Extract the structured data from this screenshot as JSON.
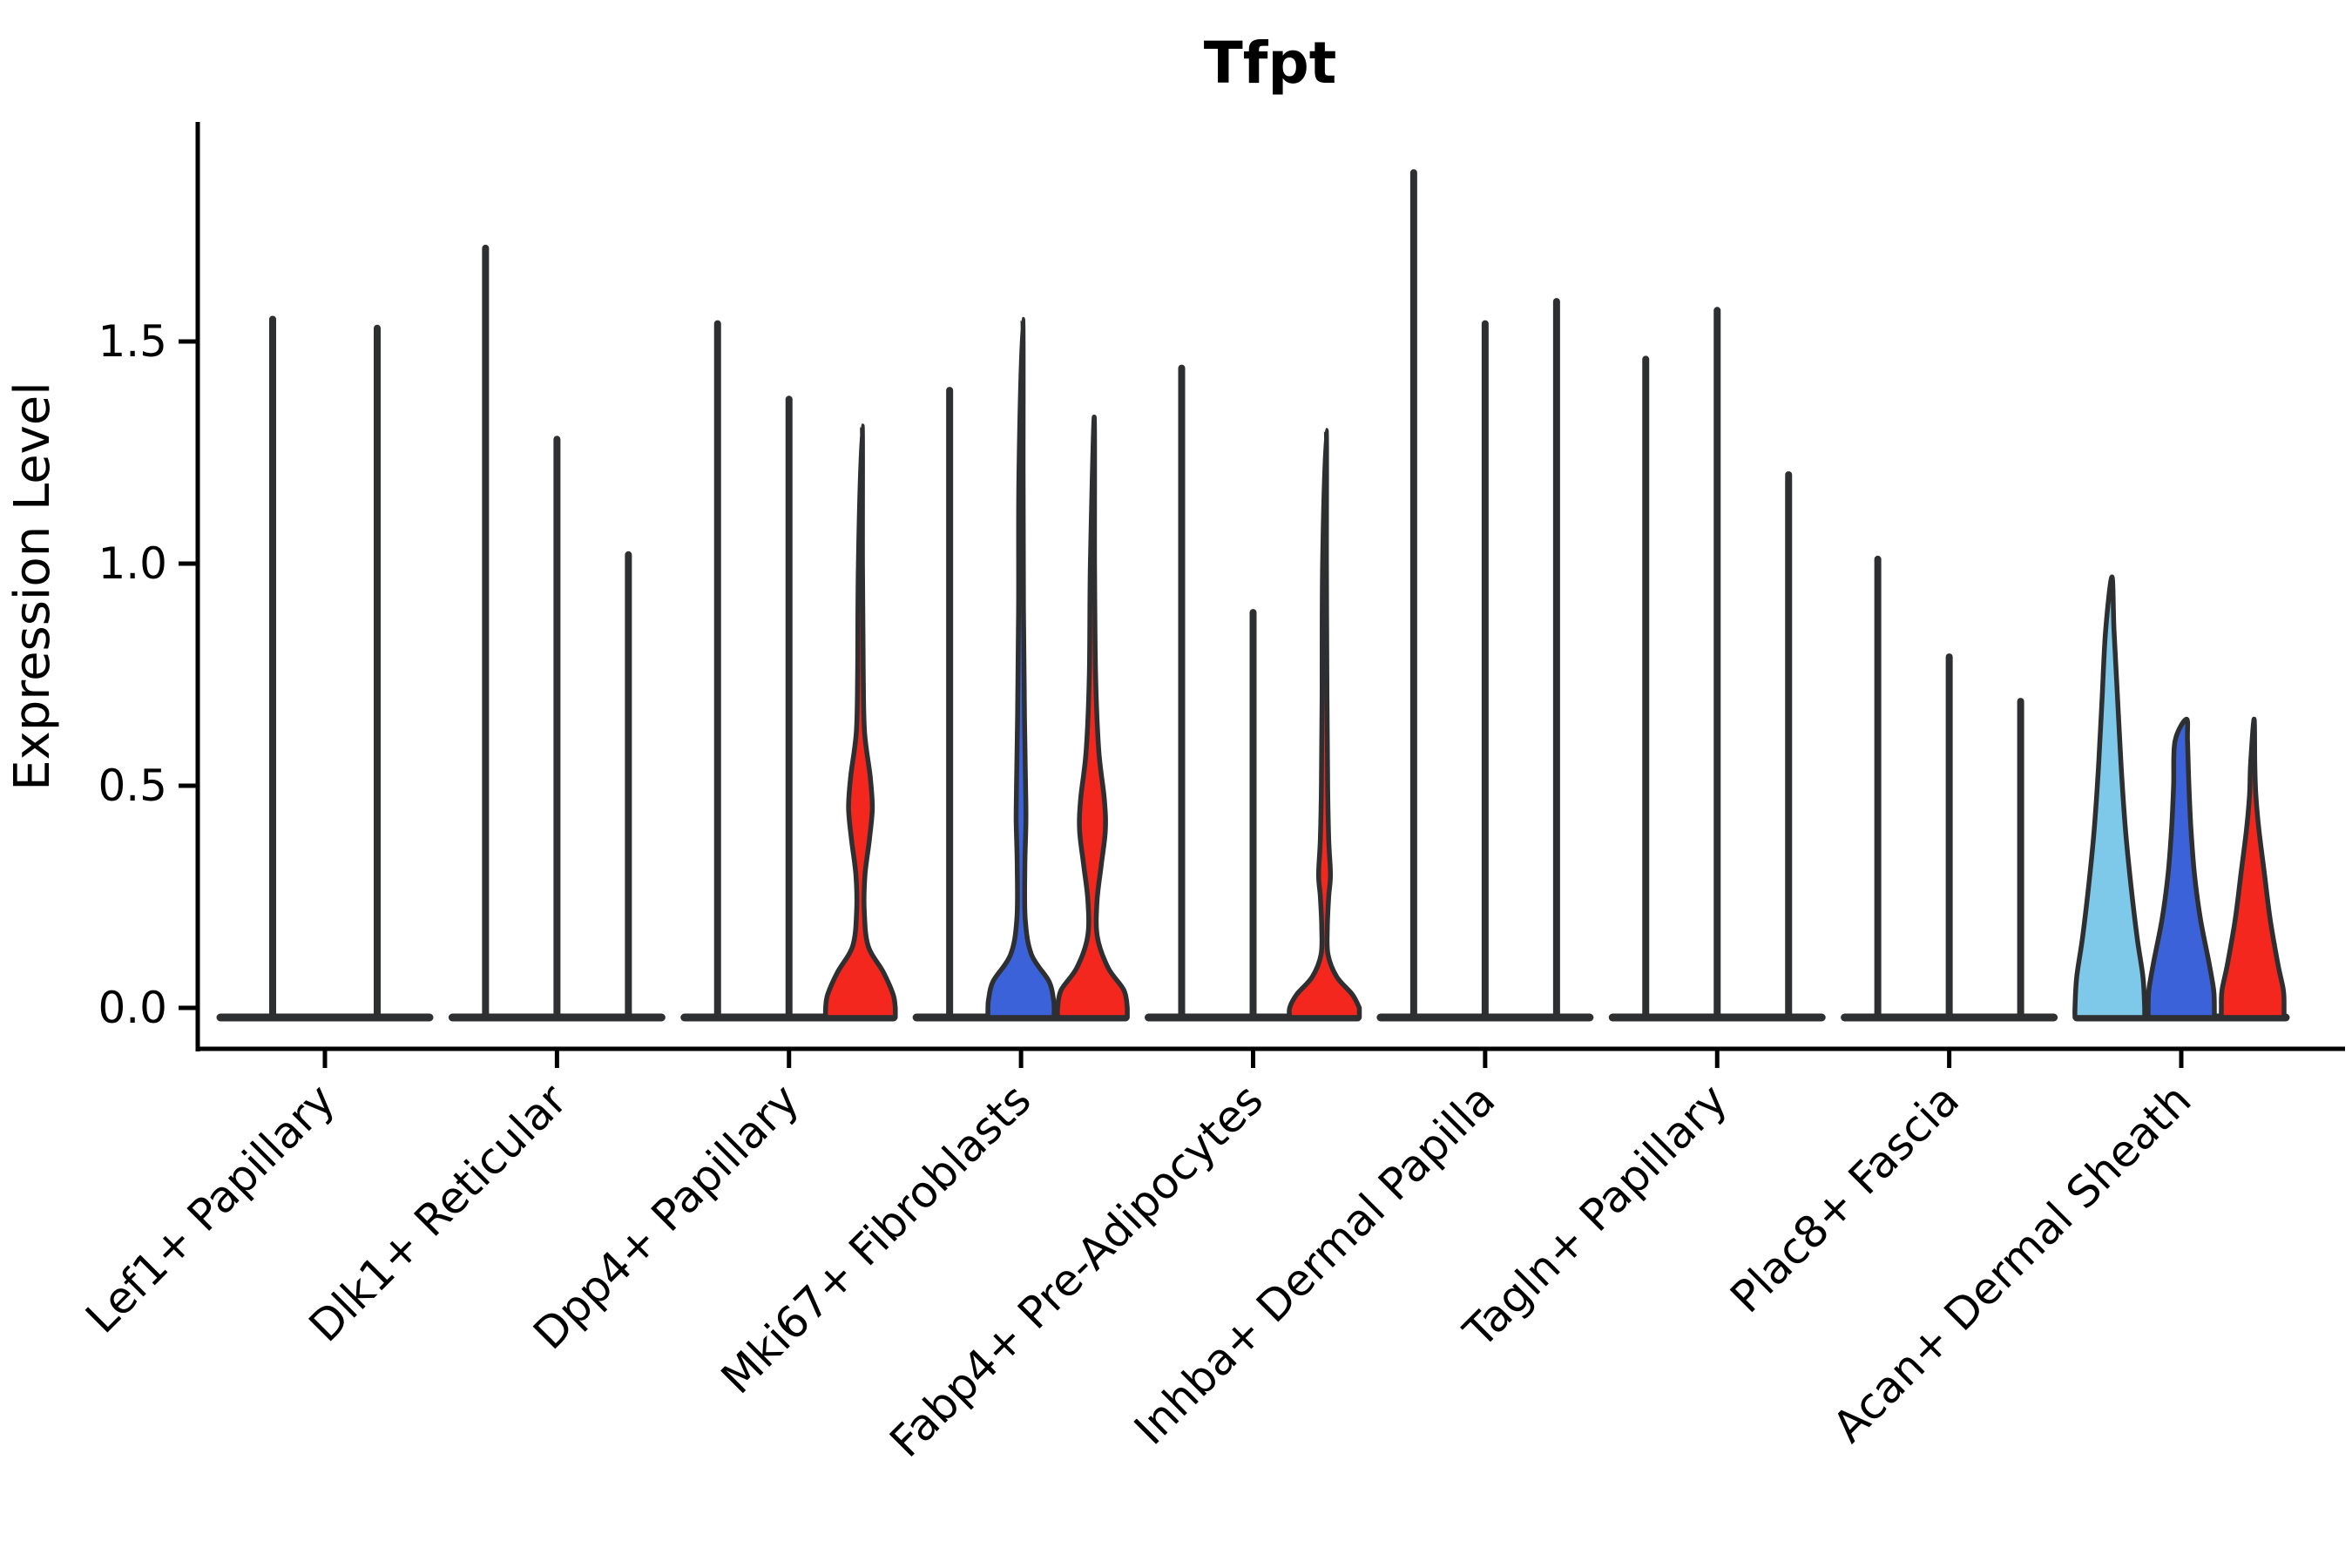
{
  "title": "Tfpt",
  "colors": {
    "background": "#ffffff",
    "axis": "#000000",
    "violin_edge": "#2e2f31",
    "baseline": "#2e2f31",
    "red": "#f3271e",
    "blue": "#3b62d9",
    "skyblue": "#7ec8e9",
    "text": "#000000"
  },
  "chart_data": {
    "type": "violin",
    "title": "Tfpt",
    "xlabel": "",
    "ylabel": "Expression Level",
    "ylim": [
      -0.09,
      1.99
    ],
    "yticks": [
      0,
      0.5,
      1.0,
      1.5
    ],
    "ytick_labels": [
      "0.0",
      "0.5",
      "1.0",
      "1.5"
    ],
    "grid": false,
    "legend": "none",
    "categories": [
      "Lef1+ Papillary",
      "Dlk1+ Reticular",
      "Dpp4+ Papillary",
      "Mki67+ Fibroblasts",
      "Fabp4+ Pre-Adipocytes",
      "Inhba+ Dermal Papilla",
      "Tagln+ Papillary",
      "Plac8+ Fascia",
      "Acan+ Dermal Sheath"
    ],
    "series_per_group": 3,
    "groups": [
      {
        "category": "Lef1+ Papillary",
        "dodge_count": 2,
        "violins": [
          {
            "position": 1,
            "shape": "collapsed-spike",
            "max": 1.55,
            "fill": null
          },
          {
            "position": 2,
            "shape": "collapsed-spike",
            "max": 1.53,
            "fill": null
          }
        ]
      },
      {
        "category": "Dlk1+ Reticular",
        "dodge_count": 3,
        "violins": [
          {
            "position": 1,
            "shape": "collapsed-spike",
            "max": 1.71,
            "fill": null
          },
          {
            "position": 2,
            "shape": "collapsed-spike",
            "max": 1.28,
            "fill": null
          },
          {
            "position": 3,
            "shape": "collapsed-spike",
            "max": 1.02,
            "fill": null
          }
        ]
      },
      {
        "category": "Dpp4+ Papillary",
        "dodge_count": 3,
        "violins": [
          {
            "position": 1,
            "shape": "collapsed-spike",
            "max": 1.54,
            "fill": null
          },
          {
            "position": 2,
            "shape": "collapsed-spike",
            "max": 1.37,
            "fill": null
          },
          {
            "position": 3,
            "shape": "violin",
            "max": 1.31,
            "fill": "red",
            "profile": [
              [
                1.31,
                0.05
              ],
              [
                1.0,
                0.06
              ],
              [
                0.75,
                0.08
              ],
              [
                0.62,
                0.12
              ],
              [
                0.52,
                0.28
              ],
              [
                0.45,
                0.34
              ],
              [
                0.38,
                0.26
              ],
              [
                0.3,
                0.13
              ],
              [
                0.22,
                0.11
              ],
              [
                0.14,
                0.22
              ],
              [
                0.08,
                0.66
              ],
              [
                0.03,
                0.94
              ],
              [
                0,
                1.0
              ]
            ]
          }
        ]
      },
      {
        "category": "Mki67+ Fibroblasts",
        "dodge_count": 3,
        "violins": [
          {
            "position": 1,
            "shape": "collapsed-spike",
            "max": 1.39,
            "fill": null
          },
          {
            "position": 2,
            "shape": "violin",
            "max": 1.55,
            "fill": "blue",
            "profile": [
              [
                1.55,
                0.05
              ],
              [
                1.2,
                0.06
              ],
              [
                0.9,
                0.07
              ],
              [
                0.65,
                0.1
              ],
              [
                0.5,
                0.13
              ],
              [
                0.42,
                0.14
              ],
              [
                0.32,
                0.11
              ],
              [
                0.2,
                0.12
              ],
              [
                0.12,
                0.3
              ],
              [
                0.06,
                0.8
              ],
              [
                0.02,
                0.93
              ],
              [
                0,
                0.95
              ]
            ]
          },
          {
            "position": 3,
            "shape": "violin",
            "max": 1.33,
            "fill": "red",
            "profile": [
              [
                1.33,
                0.05
              ],
              [
                1.0,
                0.06
              ],
              [
                0.75,
                0.09
              ],
              [
                0.58,
                0.18
              ],
              [
                0.47,
                0.34
              ],
              [
                0.4,
                0.37
              ],
              [
                0.32,
                0.25
              ],
              [
                0.24,
                0.13
              ],
              [
                0.16,
                0.14
              ],
              [
                0.09,
                0.45
              ],
              [
                0.04,
                0.9
              ],
              [
                0,
                1.0
              ]
            ]
          }
        ]
      },
      {
        "category": "Fabp4+ Pre-Adipocytes",
        "dodge_count": 3,
        "violins": [
          {
            "position": 1,
            "shape": "collapsed-spike",
            "max": 1.44,
            "fill": null
          },
          {
            "position": 2,
            "shape": "collapsed-spike",
            "max": 0.89,
            "fill": null
          },
          {
            "position": 3,
            "shape": "violin",
            "max": 1.3,
            "fill": "red",
            "profile": [
              [
                1.3,
                0.05
              ],
              [
                1.0,
                0.055
              ],
              [
                0.7,
                0.07
              ],
              [
                0.5,
                0.09
              ],
              [
                0.38,
                0.12
              ],
              [
                0.3,
                0.17
              ],
              [
                0.25,
                0.12
              ],
              [
                0.18,
                0.08
              ],
              [
                0.12,
                0.1
              ],
              [
                0.07,
                0.35
              ],
              [
                0.03,
                0.8
              ],
              [
                0,
                1.0
              ]
            ]
          }
        ]
      },
      {
        "category": "Inhba+ Dermal Papilla",
        "dodge_count": 3,
        "violins": [
          {
            "position": 1,
            "shape": "collapsed-spike",
            "max": 1.88,
            "fill": null
          },
          {
            "position": 2,
            "shape": "collapsed-spike",
            "max": 1.54,
            "fill": null
          },
          {
            "position": 3,
            "shape": "collapsed-spike",
            "max": 1.59,
            "fill": null
          }
        ]
      },
      {
        "category": "Tagln+ Papillary",
        "dodge_count": 3,
        "violins": [
          {
            "position": 1,
            "shape": "collapsed-spike",
            "max": 1.46,
            "fill": null
          },
          {
            "position": 2,
            "shape": "collapsed-spike",
            "max": 1.57,
            "fill": null
          },
          {
            "position": 3,
            "shape": "collapsed-spike",
            "max": 1.2,
            "fill": null
          }
        ]
      },
      {
        "category": "Plac8+ Fascia",
        "dodge_count": 3,
        "violins": [
          {
            "position": 1,
            "shape": "collapsed-spike",
            "max": 1.01,
            "fill": null
          },
          {
            "position": 2,
            "shape": "collapsed-spike",
            "max": 0.79,
            "fill": null
          },
          {
            "position": 3,
            "shape": "collapsed-spike",
            "max": 0.69,
            "fill": null
          }
        ]
      },
      {
        "category": "Acan+ Dermal Sheath",
        "dodge_count": 3,
        "violins": [
          {
            "position": 1,
            "shape": "violin",
            "max": 0.97,
            "fill": "skyblue",
            "profile": [
              [
                0.97,
                0.06
              ],
              [
                0.85,
                0.12
              ],
              [
                0.7,
                0.22
              ],
              [
                0.55,
                0.32
              ],
              [
                0.4,
                0.45
              ],
              [
                0.28,
                0.6
              ],
              [
                0.16,
                0.78
              ],
              [
                0.07,
                0.95
              ],
              [
                0,
                1.0
              ]
            ]
          },
          {
            "position": 2,
            "shape": "violin",
            "max": 0.65,
            "fill": "blue",
            "profile": [
              [
                0.65,
                0.15
              ],
              [
                0.6,
                0.18
              ],
              [
                0.5,
                0.22
              ],
              [
                0.4,
                0.28
              ],
              [
                0.3,
                0.38
              ],
              [
                0.2,
                0.55
              ],
              [
                0.1,
                0.8
              ],
              [
                0.04,
                0.93
              ],
              [
                0,
                0.95
              ]
            ]
          },
          {
            "position": 3,
            "shape": "violin",
            "max": 0.65,
            "fill": "red",
            "profile": [
              [
                0.65,
                0.04
              ],
              [
                0.55,
                0.06
              ],
              [
                0.48,
                0.09
              ],
              [
                0.4,
                0.18
              ],
              [
                0.3,
                0.34
              ],
              [
                0.2,
                0.5
              ],
              [
                0.1,
                0.72
              ],
              [
                0.04,
                0.88
              ],
              [
                0,
                0.9
              ]
            ]
          }
        ]
      }
    ]
  }
}
